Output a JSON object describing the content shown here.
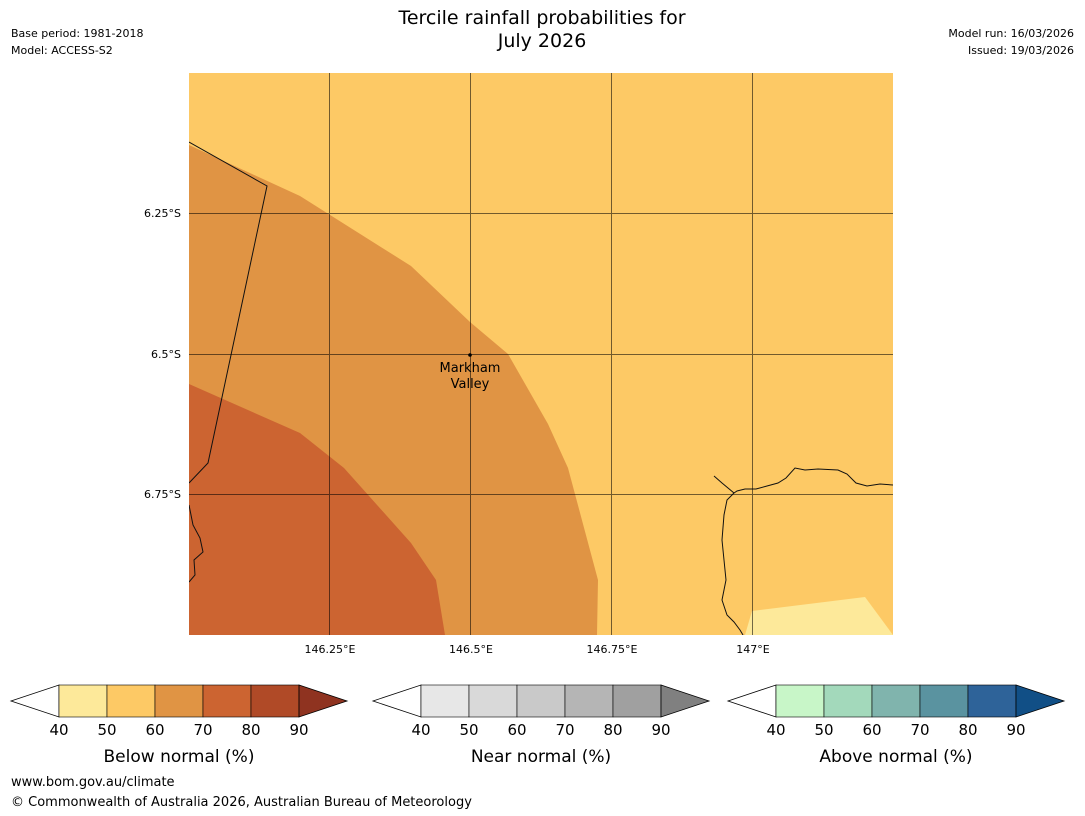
{
  "header": {
    "title_line1": "Tercile rainfall probabilities for",
    "title_line2": "July 2026",
    "base_period": "Base period: 1981-2018",
    "model": "Model: ACCESS-S2",
    "model_run": "Model run: 16/03/2026",
    "issued": "Issued: 19/03/2026"
  },
  "map": {
    "lat_labels": [
      "6.25°S",
      "6.5°S",
      "6.75°S"
    ],
    "lon_labels": [
      "146.25°E",
      "146.5°E",
      "146.75°E",
      "147°E"
    ],
    "place": {
      "name_line1": "Markham",
      "name_line2": "Valley"
    }
  },
  "colors": {
    "below": [
      "#fde99a",
      "#fdc965",
      "#e09444",
      "#cc6431",
      "#b04a27",
      "#8f3320"
    ],
    "near": [
      "#e7e7e7",
      "#d9d9d9",
      "#c9c9c9",
      "#b5b5b5",
      "#a0a0a0",
      "#808080"
    ],
    "above": [
      "#c8f6c8",
      "#a3d9bb",
      "#80b4ad",
      "#5a93a0",
      "#2e6399",
      "#114f86"
    ]
  },
  "legends": [
    {
      "id": "below",
      "title": "Below normal (%)",
      "ticks": [
        "40",
        "50",
        "60",
        "70",
        "80",
        "90"
      ]
    },
    {
      "id": "near",
      "title": "Near normal (%)",
      "ticks": [
        "40",
        "50",
        "60",
        "70",
        "80",
        "90"
      ]
    },
    {
      "id": "above",
      "title": "Above normal (%)",
      "ticks": [
        "40",
        "50",
        "60",
        "70",
        "80",
        "90"
      ]
    }
  ],
  "footer": {
    "url": "www.bom.gov.au/climate",
    "copyright": "© Commonwealth of Australia 2026, Australian Bureau of Meteorology"
  }
}
